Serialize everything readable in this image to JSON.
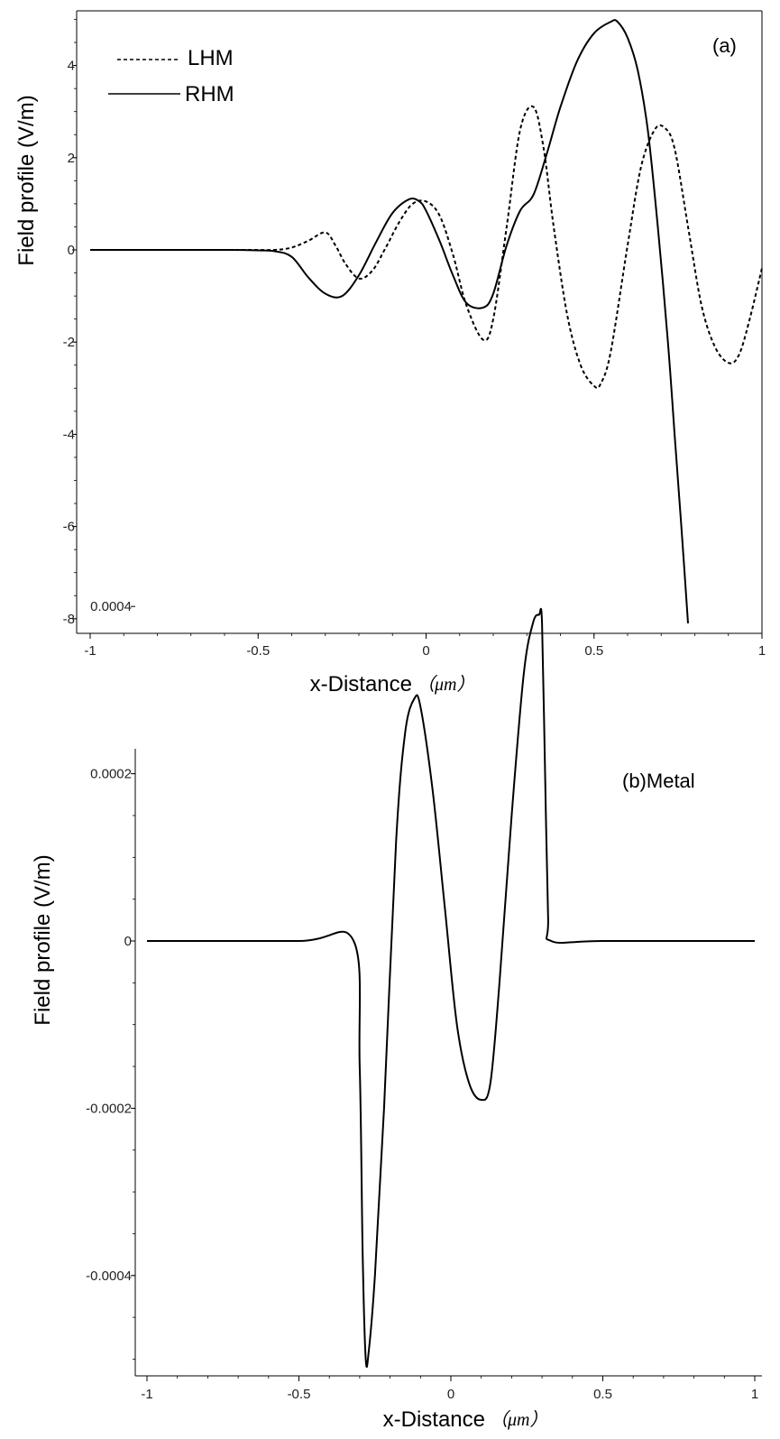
{
  "chart_data": [
    {
      "type": "line",
      "annotation": "(a)",
      "title": "",
      "xlabel": "x-Distance",
      "xlabel_unit": "（μm）",
      "ylabel": "Field profile (V/m)",
      "xlim": [
        -1,
        1
      ],
      "ylim": [
        -8.2,
        5.2
      ],
      "xticks": [
        -1,
        -0.5,
        0,
        0.5,
        1
      ],
      "xtick_labels": [
        "-1",
        "-0.5",
        "0",
        "0.5",
        "1"
      ],
      "yticks": [
        -8,
        -6,
        -4,
        -2,
        0,
        2,
        4
      ],
      "ytick_labels": [
        "-8",
        "-6",
        "-4",
        "-2",
        "0",
        "2",
        "4"
      ],
      "grid": false,
      "legend": "top-left",
      "series": [
        {
          "name": "LHM",
          "style": "dashed",
          "color": "#000000",
          "x": [
            -1,
            -0.8,
            -0.6,
            -0.5,
            -0.45,
            -0.4,
            -0.35,
            -0.3,
            -0.27,
            -0.24,
            -0.2,
            -0.16,
            -0.12,
            -0.08,
            -0.04,
            0,
            0.04,
            0.08,
            0.12,
            0.17,
            0.2,
            0.24,
            0.28,
            0.32,
            0.35,
            0.38,
            0.42,
            0.46,
            0.5,
            0.52,
            0.55,
            0.6,
            0.64,
            0.68,
            0.71,
            0.74,
            0.78,
            0.82,
            0.86,
            0.9,
            0.93,
            0.96,
            1
          ],
          "values": [
            0,
            0,
            0,
            0,
            0,
            0.05,
            0.2,
            0.38,
            0.1,
            -0.3,
            -0.62,
            -0.45,
            0.05,
            0.6,
            1.0,
            1.05,
            0.75,
            -0.1,
            -1.2,
            -1.95,
            -1.5,
            0.5,
            2.6,
            3.1,
            2.2,
            0.5,
            -1.4,
            -2.5,
            -2.95,
            -2.9,
            -2.2,
            0.1,
            1.8,
            2.6,
            2.65,
            2.2,
            0.5,
            -1.2,
            -2.1,
            -2.45,
            -2.3,
            -1.6,
            -0.4
          ]
        },
        {
          "name": "RHM",
          "style": "solid",
          "color": "#000000",
          "x": [
            -1,
            -0.8,
            -0.6,
            -0.5,
            -0.45,
            -0.4,
            -0.35,
            -0.3,
            -0.25,
            -0.2,
            -0.15,
            -0.1,
            -0.05,
            -0.02,
            0,
            0.04,
            0.08,
            0.12,
            0.17,
            0.2,
            0.24,
            0.28,
            0.32,
            0.36,
            0.4,
            0.45,
            0.5,
            0.55,
            0.57,
            0.6,
            0.63,
            0.66,
            0.69,
            0.72,
            0.74,
            0.76,
            0.78
          ],
          "values": [
            0,
            0,
            0,
            -0.01,
            -0.03,
            -0.15,
            -0.6,
            -0.95,
            -1.0,
            -0.55,
            0.15,
            0.8,
            1.1,
            1.05,
            0.85,
            0.2,
            -0.55,
            -1.15,
            -1.25,
            -0.95,
            0.1,
            0.85,
            1.2,
            2.1,
            3.1,
            4.1,
            4.7,
            4.95,
            4.95,
            4.6,
            3.9,
            2.6,
            0.5,
            -2.0,
            -4.0,
            -6.0,
            -8.1
          ]
        }
      ]
    },
    {
      "type": "line",
      "annotation": "(b)Metal",
      "title": "",
      "xlabel": "x-Distance",
      "xlabel_unit": "（μm）",
      "ylabel": "Field profile (V/m)",
      "xlim": [
        -1,
        1
      ],
      "ylim": [
        -0.00051,
        0.00041
      ],
      "xticks": [
        -1,
        -0.5,
        0,
        0.5,
        1
      ],
      "xtick_labels": [
        "-1",
        "-0.5",
        "0",
        "0.5",
        "1"
      ],
      "yticks": [
        -0.0004,
        -0.0002,
        0,
        0.0002,
        0.0004
      ],
      "ytick_labels": [
        "-0.0004",
        "-0.0002",
        "0",
        "0.0002",
        "0.0004"
      ],
      "grid": false,
      "series": [
        {
          "style": "solid",
          "color": "#000000",
          "x": [
            -1,
            -0.5,
            -0.32,
            -0.3,
            -0.29,
            -0.28,
            -0.27,
            -0.25,
            -0.22,
            -0.18,
            -0.15,
            -0.12,
            -0.1,
            -0.06,
            -0.02,
            0.02,
            0.06,
            0.1,
            0.13,
            0.16,
            0.2,
            0.24,
            0.27,
            0.29,
            0.3,
            0.31,
            0.32,
            0.33,
            0.5,
            1
          ],
          "values": [
            0,
            0,
            0,
            -0.00015,
            -0.00038,
            -0.0005,
            -0.00049,
            -0.0004,
            -0.0002,
            0.00012,
            0.00025,
            0.00029,
            0.00028,
            0.00018,
            4e-05,
            -0.0001,
            -0.00017,
            -0.00019,
            -0.00017,
            -5e-05,
            0.00015,
            0.00032,
            0.00038,
            0.00039,
            0.00038,
            0.0002,
            3e-05,
            0,
            0,
            0
          ]
        }
      ]
    }
  ]
}
